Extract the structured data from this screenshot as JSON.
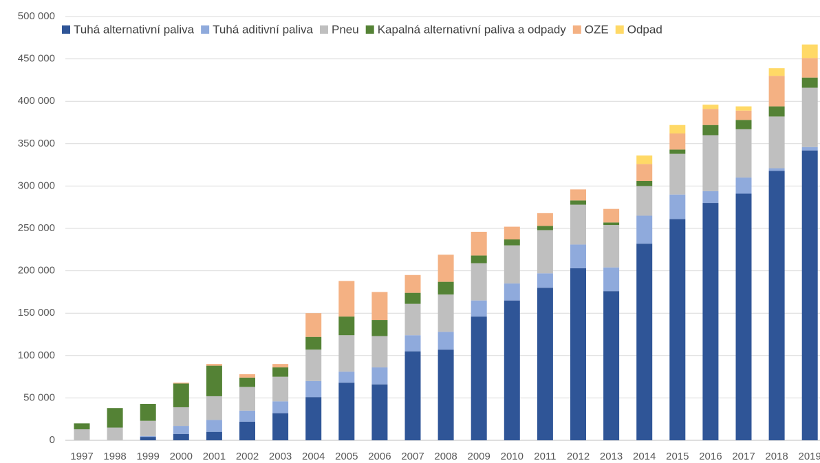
{
  "chart_data": {
    "type": "stacked_bar",
    "categories": [
      "1997",
      "1998",
      "1999",
      "2000",
      "2001",
      "2002",
      "2003",
      "2004",
      "2005",
      "2006",
      "2007",
      "2008",
      "2009",
      "2010",
      "2011",
      "2012",
      "2013",
      "2014",
      "2015",
      "2016",
      "2017",
      "2018",
      "2019"
    ],
    "series": [
      {
        "name": "Tuhá alternativní paliva",
        "color": "#2f5597",
        "values": [
          0,
          0,
          4000,
          7500,
          10000,
          22000,
          32000,
          51000,
          68000,
          66000,
          105000,
          107000,
          146000,
          165000,
          180000,
          203000,
          176000,
          232000,
          261000,
          280000,
          291000,
          318000,
          342000
        ]
      },
      {
        "name": "Tuhá aditivní paliva",
        "color": "#8faadc",
        "values": [
          0,
          0,
          1000,
          9500,
          14000,
          13000,
          14000,
          19000,
          13000,
          20000,
          19000,
          21000,
          19000,
          20000,
          17000,
          28000,
          28000,
          33000,
          29000,
          14000,
          19000,
          3000,
          4000
        ]
      },
      {
        "name": "Pneu",
        "color": "#bfbfbf",
        "values": [
          13000,
          15000,
          18000,
          22000,
          28000,
          28000,
          29000,
          37000,
          43000,
          37000,
          37000,
          44000,
          44000,
          45000,
          51000,
          47000,
          50000,
          35000,
          48000,
          66000,
          57000,
          61000,
          70000
        ]
      },
      {
        "name": "Kapalná alternativní paliva a odpady",
        "color": "#548235",
        "values": [
          7000,
          23000,
          20000,
          28000,
          36000,
          11000,
          11000,
          15000,
          22000,
          19000,
          13000,
          15000,
          9000,
          7000,
          5000,
          5000,
          3000,
          6000,
          5000,
          12000,
          11000,
          12000,
          12000
        ]
      },
      {
        "name": "OZE",
        "color": "#f4b183",
        "values": [
          0,
          0,
          0,
          1000,
          2000,
          4000,
          4000,
          28000,
          42000,
          33000,
          21000,
          32000,
          28000,
          15000,
          15000,
          13000,
          16000,
          20000,
          19000,
          19000,
          11000,
          36000,
          23000
        ]
      },
      {
        "name": "Odpad",
        "color": "#ffd966",
        "values": [
          0,
          0,
          0,
          0,
          0,
          0,
          0,
          0,
          0,
          0,
          0,
          0,
          0,
          0,
          0,
          0,
          0,
          10000,
          10000,
          5000,
          5000,
          9000,
          16000
        ]
      }
    ],
    "ylim": [
      0,
      500000
    ],
    "yticks": [
      0,
      {
        "value": 50000,
        "label": "50 000"
      },
      {
        "value": 100000,
        "label": "100 000"
      },
      {
        "value": 150000,
        "label": "150 000"
      },
      {
        "value": 200000,
        "label": "200 000"
      },
      {
        "value": 250000,
        "label": "250 000"
      },
      {
        "value": 300000,
        "label": "300 000"
      },
      {
        "value": 350000,
        "label": "350 000"
      },
      {
        "value": 400000,
        "label": "400 000"
      },
      {
        "value": 450000,
        "label": "450 000"
      },
      {
        "value": 500000,
        "label": "500 000"
      }
    ],
    "grid": true,
    "legend": "top"
  }
}
